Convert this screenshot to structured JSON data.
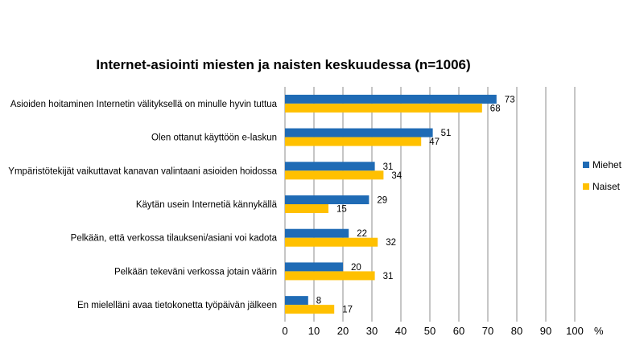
{
  "chart_data": {
    "type": "bar",
    "orientation": "horizontal",
    "title": "Internet-asiointi miesten ja naisten keskuudessa (n=1006)",
    "xlabel": "%",
    "ylabel": "",
    "xlim": [
      0,
      100
    ],
    "ticks": [
      0,
      10,
      20,
      30,
      40,
      50,
      60,
      70,
      80,
      90,
      100
    ],
    "grid": true,
    "legend_position": "right",
    "categories": [
      "Asioiden hoitaminen Internetin välityksellä on minulle hyvin tuttua",
      "Olen ottanut käyttöön e-laskun",
      "Ympäristötekijät vaikuttavat kanavan valintaani asioiden hoidossa",
      "Käytän usein Internetiä kännykällä",
      "Pelkään, että verkossa tilaukseni/asiani voi kadota",
      "Pelkään tekeväni verkossa jotain väärin",
      "En mielelläni avaa tietokonetta työpäivän jälkeen"
    ],
    "series": [
      {
        "name": "Miehet",
        "color": "#1f6bb5",
        "values": [
          73,
          51,
          31,
          29,
          22,
          20,
          8
        ]
      },
      {
        "name": "Naiset",
        "color": "#ffc000",
        "values": [
          68,
          47,
          34,
          15,
          32,
          31,
          17
        ]
      }
    ]
  }
}
